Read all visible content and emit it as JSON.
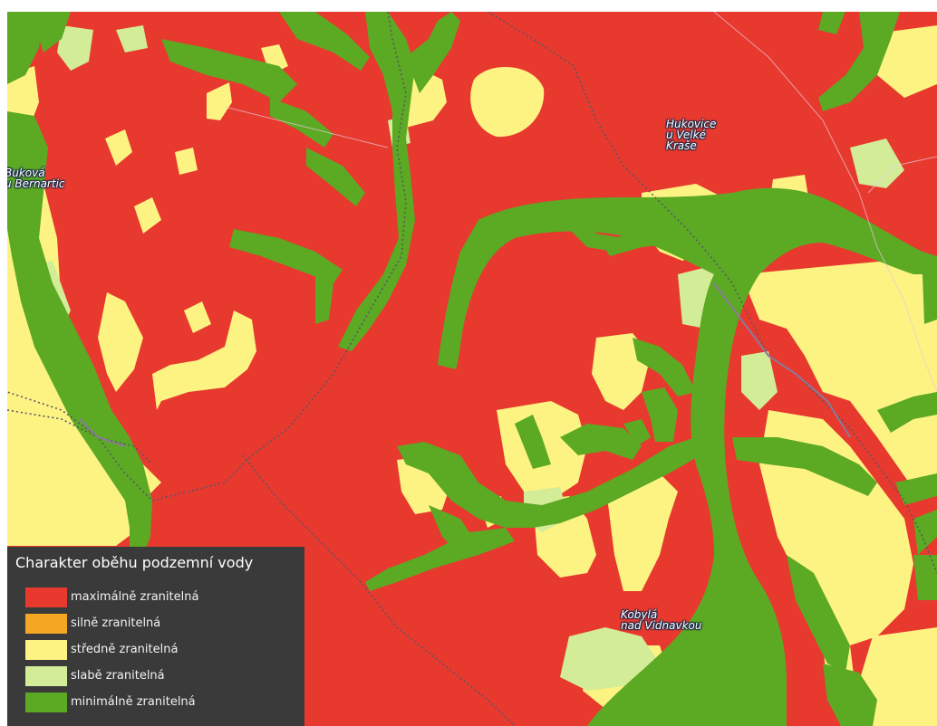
{
  "colors": {
    "maximalne": "#e8392e",
    "silne": "#f5a623",
    "stredne": "#fdf383",
    "slabe": "#d3ec98",
    "minimalne": "#5ca924",
    "boundary": "#5a5a6a"
  },
  "places": [
    {
      "id": "bukova",
      "text": "Buková\nu Bernartic"
    },
    {
      "id": "hukovice",
      "text": "Hukovice\nu Velké\nKraše"
    },
    {
      "id": "kobyla",
      "text": "Kobylá\nnad Vidnavkou"
    }
  ],
  "legend": {
    "title": "Charakter oběhu podzemní vody",
    "items": [
      {
        "label": "maximálně zranitelná",
        "color": "#e8392e"
      },
      {
        "label": "silně zranitelná",
        "color": "#f5a623"
      },
      {
        "label": "středně zranitelná",
        "color": "#fdf383"
      },
      {
        "label": "slabě zranitelná",
        "color": "#d3ec98"
      },
      {
        "label": "minimálně zranitelná",
        "color": "#5ca924"
      }
    ]
  }
}
